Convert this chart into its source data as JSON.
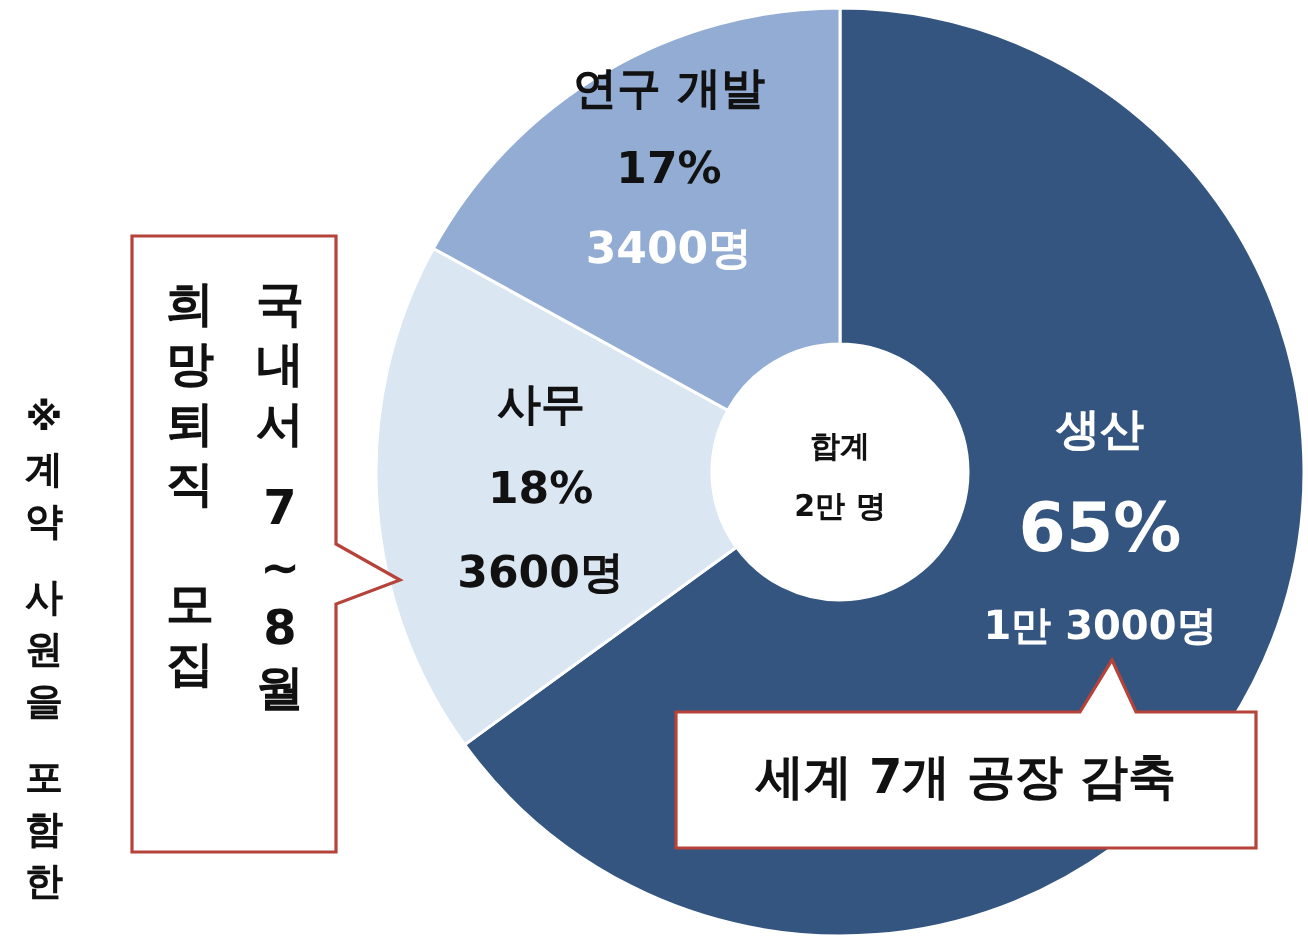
{
  "chart_data": {
    "type": "donut",
    "categories": [
      "생산",
      "사무",
      "연구 개발"
    ],
    "values": [
      65,
      18,
      17
    ],
    "value_labels": [
      "65%",
      "18%",
      "17%"
    ],
    "colors": [
      "#34557f",
      "#dbe6f3",
      "#93acd3"
    ],
    "annotations": [
      "1만 3000명",
      "3600명",
      "3400명",
      "합계 2만 명",
      "국내서 7~8월",
      "희망퇴직 모집",
      "※계약 사원을 포함한",
      "세계 7개 공장 감축"
    ]
  }
}
